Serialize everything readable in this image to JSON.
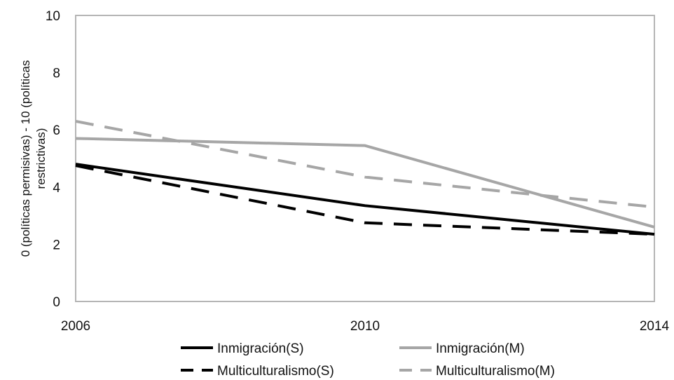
{
  "chart_data": {
    "type": "line",
    "x": [
      "2006",
      "2010",
      "2014"
    ],
    "ylabel": "0 (políticas permisivas) - 10 (políticas restrictivas)",
    "ylim": [
      0,
      10
    ],
    "yticks": [
      "0",
      "2",
      "4",
      "6",
      "8",
      "10"
    ],
    "grid": false,
    "legend_position": "bottom",
    "series": [
      {
        "name": "Inmigración(S)",
        "values": [
          4.8,
          3.35,
          2.35
        ],
        "color": "#000000",
        "dash": "solid"
      },
      {
        "name": "Inmigración(M)",
        "values": [
          5.7,
          5.45,
          2.6
        ],
        "color": "#a6a6a6",
        "dash": "solid"
      },
      {
        "name": "Multiculturalismo(S)",
        "values": [
          4.75,
          2.75,
          2.35
        ],
        "color": "#000000",
        "dash": "dashed"
      },
      {
        "name": "Multiculturalismo(M)",
        "values": [
          6.3,
          4.35,
          3.3
        ],
        "color": "#a6a6a6",
        "dash": "dashed"
      }
    ]
  }
}
